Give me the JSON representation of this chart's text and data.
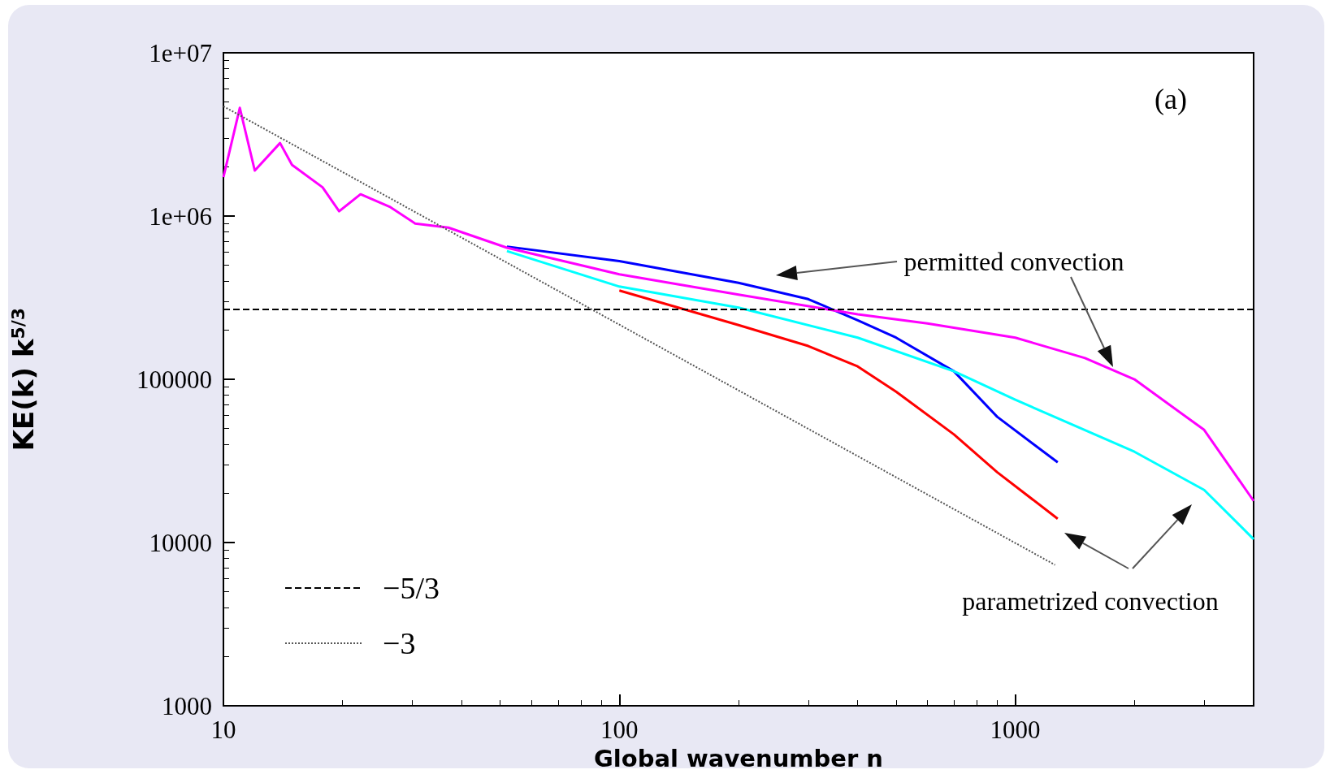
{
  "chart_data": {
    "type": "line",
    "xlabel": "Global wavenumber n",
    "ylabel": "KE(k) k$^{5/3}$",
    "log": "xy",
    "grid": false,
    "legend": "bottom left",
    "marker": "none",
    "xlim": [
      10,
      4000
    ],
    "xticks": [
      10,
      100,
      1000
    ],
    "ylim": [
      1000,
      10000000
    ],
    "yticks": [
      1000,
      10000,
      100000,
      {
        "value": 1000000,
        "label": "1e+06"
      },
      {
        "value": 10000000,
        "label": "1e+07"
      }
    ],
    "annotations": [
      "(a)",
      "permitted convection",
      "parametrized convection"
    ],
    "series": [
      {
        "color": "#0000ff",
        "line_style": "solid",
        "x": [
          52,
          100,
          200,
          300,
          400,
          500,
          700,
          900,
          1280
        ],
        "values": [
          650000,
          530000,
          390000,
          310000,
          230000,
          180000,
          112000,
          59000,
          31000
        ]
      },
      {
        "color": "#ff00ff",
        "line_style": "solid",
        "x": [
          10,
          11,
          12,
          13.9,
          14.9,
          17.8,
          19.6,
          22.2,
          26.3,
          30.5,
          37,
          52,
          100,
          200,
          400,
          600,
          1000,
          1500,
          2000,
          3000,
          4000
        ],
        "values": [
          1730000,
          4600000,
          1900000,
          2800000,
          2060000,
          1500000,
          1070000,
          1360000,
          1140000,
          900000,
          850000,
          640000,
          440000,
          330000,
          250000,
          220000,
          180000,
          135000,
          100000,
          49000,
          18000
        ]
      },
      {
        "color": "#00ffff",
        "line_style": "solid",
        "x": [
          52,
          100,
          200,
          400,
          700,
          1000,
          2000,
          3000,
          4000
        ],
        "values": [
          610000,
          370000,
          275000,
          180000,
          112000,
          75000,
          36000,
          21000,
          10500
        ]
      },
      {
        "color": "#ff0000",
        "line_style": "solid",
        "x": [
          100,
          200,
          300,
          400,
          500,
          700,
          900,
          1280
        ],
        "values": [
          350000,
          215000,
          160000,
          120000,
          84000,
          46000,
          27000,
          14000
        ]
      },
      {
        "name": "−5/3",
        "color": "#000000",
        "line_style": "dashed",
        "x": [
          10,
          4000
        ],
        "values": [
          268000,
          268000
        ]
      },
      {
        "name": "−3",
        "color": "#555555",
        "line_style": "dotted",
        "x": [
          10,
          1260
        ],
        "values": [
          4700000,
          7300
        ]
      }
    ]
  }
}
